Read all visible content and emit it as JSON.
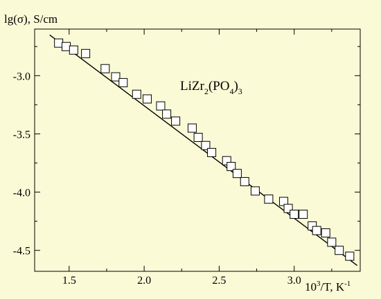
{
  "chart_data": {
    "type": "scatter",
    "title": "",
    "ylabel": "lg(σ), S/cm",
    "xlabel": {
      "base": "10",
      "exp": "3",
      "rest": "/T, K",
      "unit_exp": "-1"
    },
    "annotation": {
      "a": "LiZr",
      "s1": "2",
      "b": "(PO",
      "s2": "4",
      "c": ")",
      "s3": "3"
    },
    "xlim": [
      1.27,
      3.44
    ],
    "ylim": [
      -4.68,
      -2.6
    ],
    "x_ticks": [
      1.5,
      2.0,
      2.5,
      3.0
    ],
    "x_tick_labels": [
      "1.5",
      "2.0",
      "2.5",
      "3.0"
    ],
    "y_ticks": [
      -3.0,
      -3.5,
      -4.0,
      -4.5
    ],
    "y_tick_labels": [
      "-3.0",
      "-3.5",
      "-4.0",
      "-4.5"
    ],
    "grid": false,
    "series": [
      {
        "marker": "open-square",
        "points": [
          [
            1.43,
            -2.72
          ],
          [
            1.48,
            -2.75
          ],
          [
            1.53,
            -2.78
          ],
          [
            1.61,
            -2.81
          ],
          [
            1.74,
            -2.94
          ],
          [
            1.81,
            -3.01
          ],
          [
            1.86,
            -3.06
          ],
          [
            1.95,
            -3.16
          ],
          [
            2.02,
            -3.2
          ],
          [
            2.11,
            -3.26
          ],
          [
            2.15,
            -3.33
          ],
          [
            2.21,
            -3.39
          ],
          [
            2.32,
            -3.45
          ],
          [
            2.36,
            -3.53
          ],
          [
            2.41,
            -3.6
          ],
          [
            2.45,
            -3.66
          ],
          [
            2.55,
            -3.73
          ],
          [
            2.58,
            -3.78
          ],
          [
            2.62,
            -3.84
          ],
          [
            2.67,
            -3.91
          ],
          [
            2.74,
            -3.99
          ],
          [
            2.83,
            -4.06
          ],
          [
            2.93,
            -4.08
          ],
          [
            2.96,
            -4.14
          ],
          [
            3.0,
            -4.19
          ],
          [
            3.06,
            -4.19
          ],
          [
            3.12,
            -4.29
          ],
          [
            3.15,
            -4.33
          ],
          [
            3.21,
            -4.35
          ],
          [
            3.25,
            -4.43
          ],
          [
            3.3,
            -4.5
          ],
          [
            3.37,
            -4.55
          ]
        ]
      }
    ],
    "fit_line": {
      "x": [
        1.37,
        3.42
      ],
      "y": [
        -2.65,
        -4.63
      ]
    }
  }
}
